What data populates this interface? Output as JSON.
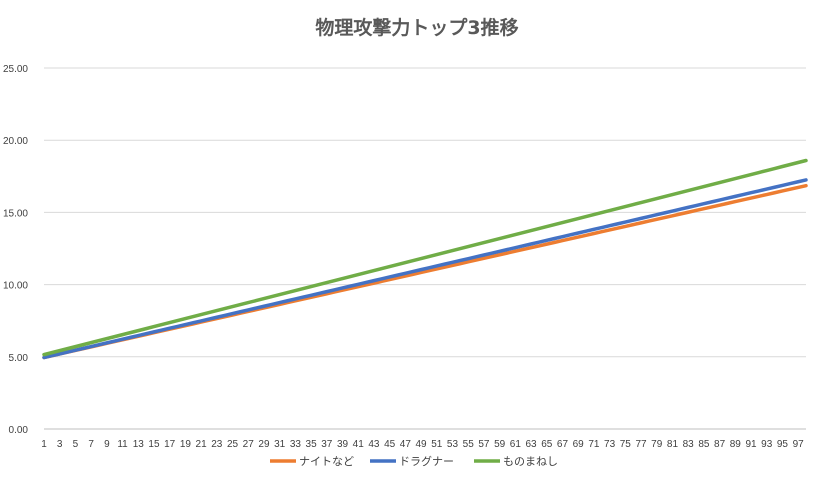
{
  "chart_data": {
    "type": "line",
    "title": "物理攻撃力トップ3推移",
    "xlabel": "",
    "ylabel": "",
    "x_range": [
      1,
      98
    ],
    "x_tick_step": 2,
    "ylim": [
      0,
      25
    ],
    "y_ticks": [
      "0.00",
      "5.00",
      "10.00",
      "15.00",
      "20.00",
      "25.00"
    ],
    "grid": true,
    "legend_position": "bottom",
    "series": [
      {
        "name": "ナイトなど",
        "color": "#ED7D31",
        "start": 4.95,
        "step": 0.1227
      },
      {
        "name": "ドラグナー",
        "color": "#4472C4",
        "start": 4.95,
        "step": 0.1268
      },
      {
        "name": "ものまねし",
        "color": "#70AD47",
        "start": 5.15,
        "step": 0.1386
      }
    ]
  }
}
